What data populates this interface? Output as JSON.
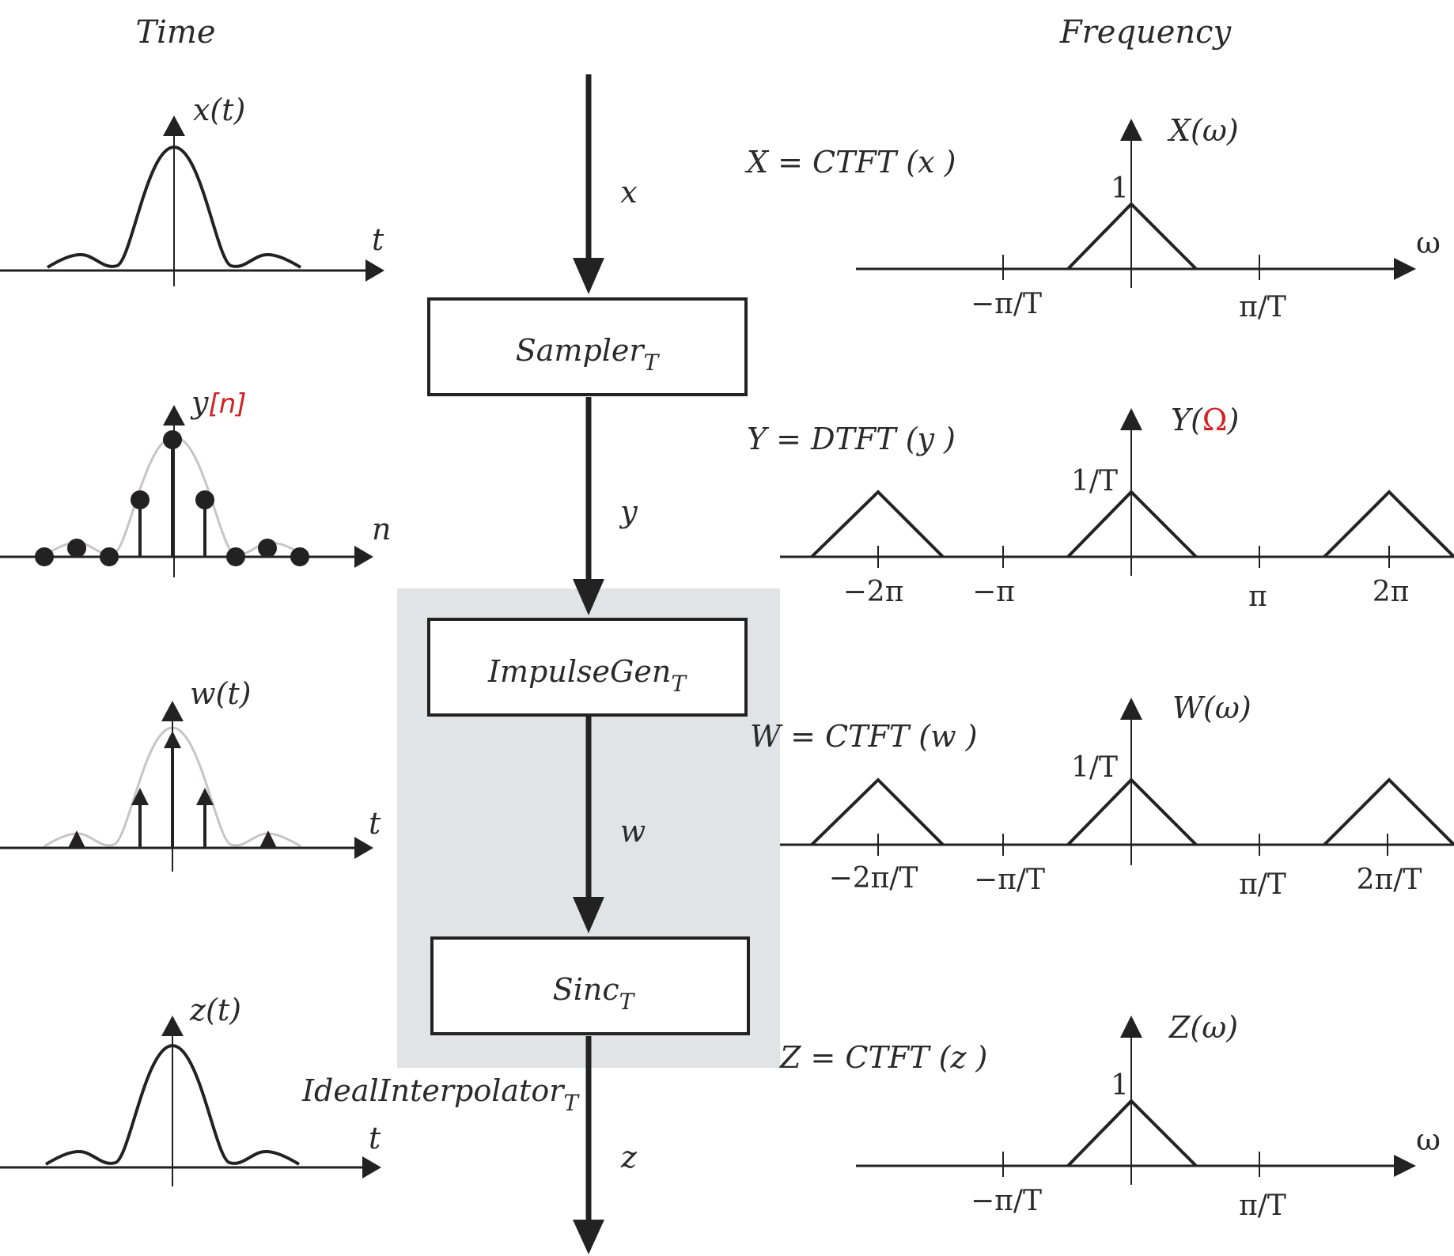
{
  "headers": {
    "time": "Time",
    "frequency": "Frequency"
  },
  "signals": {
    "x": "x",
    "y": "y",
    "w": "w",
    "z": "z"
  },
  "blocks": {
    "sampler": {
      "name": "Sampler",
      "sub": "T"
    },
    "impulse_gen": {
      "name": "ImpulseGen",
      "sub": "T"
    },
    "sinc": {
      "name": "Sinc",
      "sub": "T"
    },
    "ideal_interpolator": {
      "name": "IdealInterpolator",
      "sub": "T"
    }
  },
  "time_plots": {
    "x": {
      "label": "x(t)",
      "axis": "t"
    },
    "y": {
      "label_main": "y",
      "label_index": "[n]",
      "axis": "n"
    },
    "w": {
      "label": "w(t)",
      "axis": "t"
    },
    "z": {
      "label": "z(t)",
      "axis": "t"
    }
  },
  "freq_plots": {
    "X": {
      "equation": "X = CTFT (x )",
      "label": "X(ω)",
      "peak": "1",
      "axis": "ω",
      "ticks": [
        "−π/T",
        "π/T"
      ]
    },
    "Y": {
      "equation": "Y = DTFT (y )",
      "label_pre": "Y(",
      "label_var": "Ω",
      "label_post": ")",
      "peak": "1/T",
      "ticks": [
        "−2π",
        "−π",
        "π",
        "2π"
      ]
    },
    "W": {
      "equation": "W = CTFT (w )",
      "label": "W(ω)",
      "peak": "1/T",
      "ticks": [
        "−2π/T",
        "−π/T",
        "π/T",
        "2π/T"
      ]
    },
    "Z": {
      "equation": "Z = CTFT (z )",
      "label": "Z(ω)",
      "peak": "1",
      "axis": "ω",
      "ticks": [
        "−π/T",
        "π/T"
      ]
    }
  },
  "colors": {
    "ink": "#222222",
    "shaded_box": "#e2e3e6",
    "highlight": "#d42020",
    "ghost_curve": "#c8c4c4"
  }
}
